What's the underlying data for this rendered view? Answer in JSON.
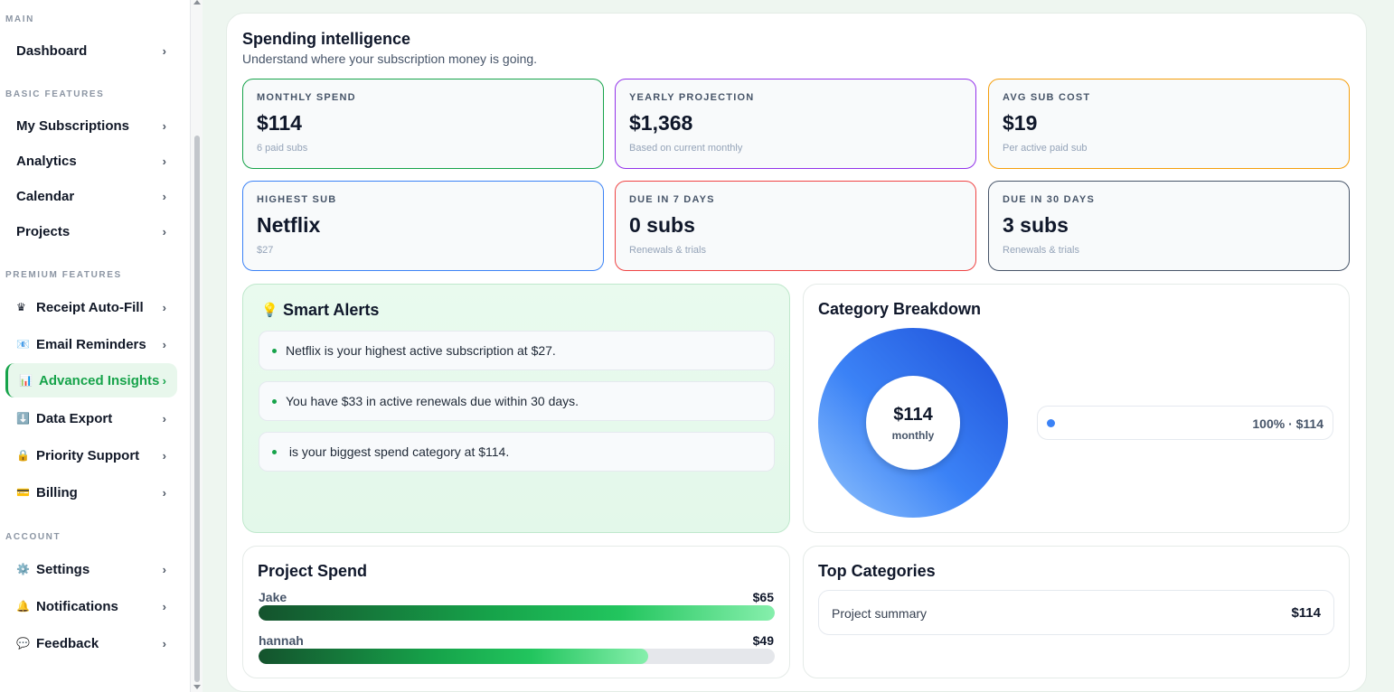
{
  "sidebar": {
    "sections": {
      "main": "MAIN",
      "basic": "BASIC FEATURES",
      "premium": "PREMIUM FEATURES",
      "account": "ACCOUNT"
    },
    "items": [
      {
        "label": "Dashboard",
        "icon": ""
      },
      {
        "label": "My Subscriptions",
        "icon": ""
      },
      {
        "label": "Analytics",
        "icon": ""
      },
      {
        "label": "Calendar",
        "icon": ""
      },
      {
        "label": "Projects",
        "icon": ""
      },
      {
        "label": "Receipt Auto-Fill",
        "icon": "♛"
      },
      {
        "label": "Email Reminders",
        "icon": "📧"
      },
      {
        "label": "Advanced Insights",
        "icon": "📊"
      },
      {
        "label": "Data Export",
        "icon": "⬇️"
      },
      {
        "label": "Priority Support",
        "icon": "🔒"
      },
      {
        "label": "Billing",
        "icon": "💳"
      },
      {
        "label": "Settings",
        "icon": "⚙️"
      },
      {
        "label": "Notifications",
        "icon": "🔔"
      },
      {
        "label": "Feedback",
        "icon": "💬"
      }
    ],
    "chevron": "›",
    "active_color": "#16a34a"
  },
  "header": {
    "title": "Spending intelligence",
    "subtitle": "Understand where your subscription money is going."
  },
  "stats": [
    {
      "label": "MONTHLY SPEND",
      "value": "$114",
      "sub": "6 paid subs",
      "color": "#16a34a"
    },
    {
      "label": "YEARLY PROJECTION",
      "value": "$1,368",
      "sub": "Based on current monthly",
      "color": "#9333ea"
    },
    {
      "label": "AVG SUB COST",
      "value": "$19",
      "sub": "Per active paid sub",
      "color": "#f59e0b"
    },
    {
      "label": "HIGHEST SUB",
      "value": "Netflix",
      "sub": "$27",
      "color": "#3b82f6"
    },
    {
      "label": "DUE IN 7 DAYS",
      "value": "0 subs",
      "sub": "Renewals & trials",
      "color": "#ef4444"
    },
    {
      "label": "DUE IN 30 DAYS",
      "value": "3 subs",
      "sub": "Renewals & trials",
      "color": "#475569"
    }
  ],
  "alerts": {
    "title": "Smart Alerts",
    "icon": "💡",
    "items": [
      "Netflix is your highest active subscription at $27.",
      "You have $33 in active renewals due within 30 days.",
      " is your biggest spend category at $114."
    ]
  },
  "category": {
    "title": "Category Breakdown",
    "center_value": "$114",
    "center_label": "monthly",
    "legend": "100% · $114",
    "share": 1.0
  },
  "projects": {
    "title": "Project Spend",
    "items": [
      {
        "name": "Jake",
        "amount": "$65",
        "fraction": 1.0
      },
      {
        "name": "hannah",
        "amount": "$49",
        "fraction": 0.754
      }
    ]
  },
  "top_categories": {
    "title": "Top Categories",
    "rows": [
      {
        "name": "Project summary",
        "amount": "$114"
      }
    ]
  }
}
